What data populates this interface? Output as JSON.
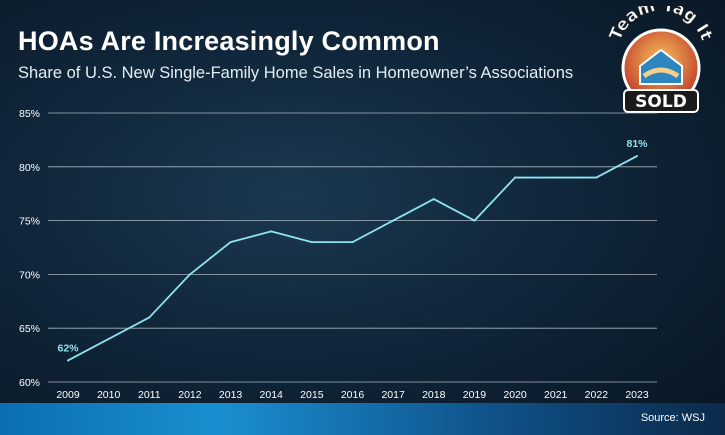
{
  "title": "HOAs Are Increasingly Common",
  "subtitle": "Share of U.S. New Single-Family Home Sales in Homeowner’s Associations",
  "source": "Source: WSJ",
  "logo": {
    "top_text": "Team Tag It",
    "badge_text": "SOLD"
  },
  "colors": {
    "line": "#8fe3f0",
    "label": "#8fe3f0",
    "grid": "#cfd8e0",
    "axis_text": "#ffffff"
  },
  "chart_data": {
    "type": "line",
    "x": [
      2009,
      2010,
      2011,
      2012,
      2013,
      2014,
      2015,
      2016,
      2017,
      2018,
      2019,
      2020,
      2021,
      2022,
      2023
    ],
    "y": [
      62,
      64,
      66,
      70,
      73,
      74,
      73,
      73,
      75,
      77,
      75,
      79,
      79,
      79,
      81
    ],
    "ylim": [
      60,
      85
    ],
    "yticks": [
      "60%",
      "65%",
      "70%",
      "75%",
      "80%",
      "85%"
    ],
    "ytick_values": [
      60,
      65,
      70,
      75,
      80,
      85
    ],
    "xticks": [
      "2009",
      "2010",
      "2011",
      "2012",
      "2013",
      "2014",
      "2015",
      "2016",
      "2017",
      "2018",
      "2019",
      "2020",
      "2021",
      "2022",
      "2023"
    ],
    "annotations": [
      {
        "x": 2009,
        "y": 62,
        "text": "62%"
      },
      {
        "x": 2023,
        "y": 81,
        "text": "81%"
      }
    ],
    "grid": true,
    "xlabel": "",
    "ylabel": ""
  }
}
